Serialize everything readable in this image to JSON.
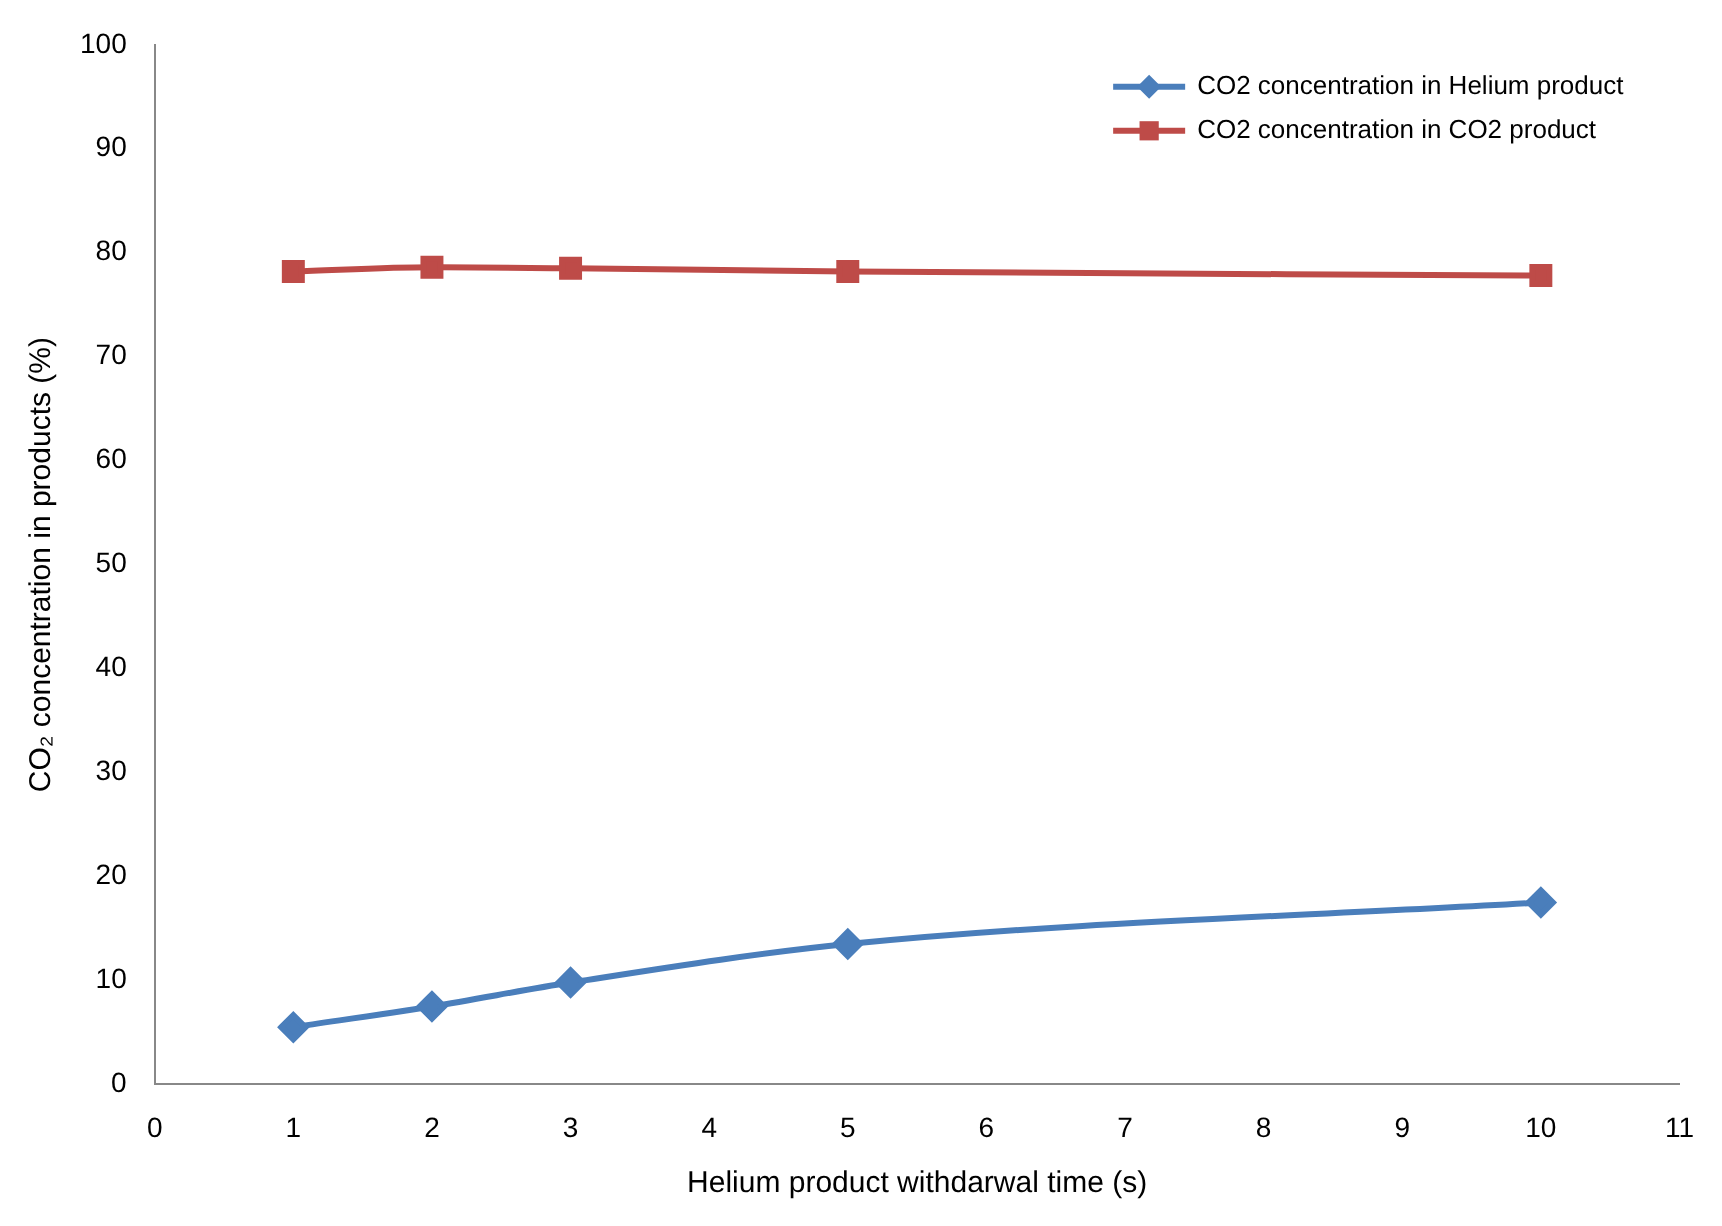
{
  "chart_data": {
    "type": "line",
    "xlabel": "Helium product withdarwal time (s)",
    "ylabel": "CO₂ concentration in products (%)",
    "x": [
      1,
      2,
      3,
      5,
      10
    ],
    "xlim": [
      0,
      11
    ],
    "xticks": [
      0,
      1,
      2,
      3,
      4,
      5,
      6,
      7,
      8,
      9,
      10,
      11
    ],
    "ylim": [
      0,
      100
    ],
    "yticks": [
      0,
      10,
      20,
      30,
      40,
      50,
      60,
      70,
      80,
      90,
      100
    ],
    "legend": "top right",
    "series": [
      {
        "name": "CO2 concentration in Helium product",
        "color": "#4a7ebb",
        "marker": "diamond",
        "values": [
          5.5,
          7.5,
          9.8,
          13.5,
          17.5
        ]
      },
      {
        "name": "CO2 concentration in CO2 product",
        "color": "#be4b48",
        "marker": "square",
        "values": [
          78.2,
          78.6,
          78.5,
          78.2,
          77.8
        ]
      }
    ]
  }
}
